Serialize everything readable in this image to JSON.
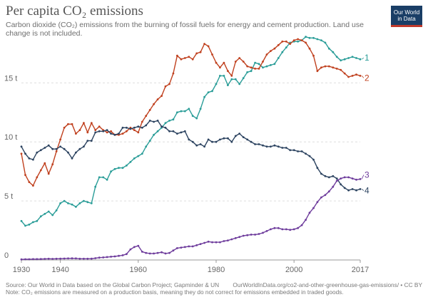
{
  "header": {
    "title": "Per capita CO₂ emissions",
    "subtitle": "Carbon dioxide (CO₂) emissions from the burning of fossil fuels for energy and cement production. Land use change is not included."
  },
  "logo": {
    "line1": "Our World",
    "line2": "in Data",
    "bg_color": "#1a3e66",
    "accent_color": "#c0392b"
  },
  "footer": {
    "source": "Source: Our World in Data based on the Global Carbon Project; Gapminder & UN",
    "url": "OurWorldInData.org/co2-and-other-greenhouse-gas-emissions/ • CC BY",
    "note": "Note: CO₂ emissions are measured on a production basis, meaning they do not correct for emissions embedded in traded goods."
  },
  "chart_data": {
    "type": "line",
    "title": "Per capita CO₂ emissions",
    "xlabel": "",
    "ylabel": "",
    "xlim": [
      1930,
      2017
    ],
    "ylim": [
      0,
      19
    ],
    "x_ticks": [
      1930,
      1940,
      1960,
      1980,
      2000,
      2017
    ],
    "y_ticks": [
      0,
      5,
      10,
      15
    ],
    "y_tick_labels": [
      "0",
      "5 t",
      "10 t",
      "15 t"
    ],
    "grid": "horizontal-dashed",
    "markers": true,
    "series": [
      {
        "name": "1",
        "color": "#2a9d98",
        "x": [
          1930,
          1931,
          1932,
          1933,
          1934,
          1935,
          1936,
          1937,
          1938,
          1939,
          1940,
          1941,
          1942,
          1943,
          1944,
          1945,
          1946,
          1947,
          1948,
          1949,
          1950,
          1951,
          1952,
          1953,
          1954,
          1955,
          1956,
          1957,
          1958,
          1959,
          1960,
          1961,
          1962,
          1963,
          1964,
          1965,
          1966,
          1967,
          1968,
          1969,
          1970,
          1971,
          1972,
          1973,
          1974,
          1975,
          1976,
          1977,
          1978,
          1979,
          1980,
          1981,
          1982,
          1983,
          1984,
          1985,
          1986,
          1987,
          1988,
          1989,
          1990,
          1991,
          1992,
          1993,
          1994,
          1995,
          1996,
          1997,
          1998,
          1999,
          2000,
          2001,
          2002,
          2003,
          2004,
          2005,
          2006,
          2007,
          2008,
          2009,
          2010,
          2011,
          2012,
          2013,
          2014,
          2015,
          2016,
          2017
        ],
        "y": [
          3.3,
          2.9,
          3.0,
          3.2,
          3.3,
          3.7,
          3.9,
          4.1,
          3.8,
          4.2,
          4.8,
          5.0,
          4.8,
          4.7,
          4.5,
          4.8,
          5.0,
          4.9,
          4.8,
          6.2,
          7.0,
          7.0,
          6.8,
          7.5,
          7.7,
          7.8,
          7.8,
          8.0,
          8.3,
          8.6,
          8.8,
          9.0,
          9.6,
          10.1,
          10.6,
          10.9,
          11.2,
          11.6,
          11.8,
          11.9,
          12.5,
          12.6,
          12.6,
          12.8,
          12.2,
          12.0,
          12.8,
          13.8,
          14.2,
          14.3,
          14.9,
          15.6,
          15.6,
          14.8,
          15.3,
          15.3,
          14.9,
          15.4,
          15.9,
          16.0,
          16.7,
          16.6,
          16.3,
          16.4,
          16.5,
          16.6,
          17.1,
          17.6,
          18.0,
          18.4,
          18.5,
          18.5,
          18.6,
          18.9,
          18.8,
          18.8,
          18.7,
          18.6,
          18.4,
          17.9,
          17.6,
          17.2,
          16.9,
          17.0,
          17.1,
          17.2,
          17.1,
          17.0
        ]
      },
      {
        "name": "2",
        "color": "#c0411f",
        "x": [
          1930,
          1931,
          1932,
          1933,
          1934,
          1935,
          1936,
          1937,
          1938,
          1939,
          1940,
          1941,
          1942,
          1943,
          1944,
          1945,
          1946,
          1947,
          1948,
          1949,
          1950,
          1951,
          1952,
          1953,
          1954,
          1955,
          1956,
          1957,
          1958,
          1959,
          1960,
          1961,
          1962,
          1963,
          1964,
          1965,
          1966,
          1967,
          1968,
          1969,
          1970,
          1971,
          1972,
          1973,
          1974,
          1975,
          1976,
          1977,
          1978,
          1979,
          1980,
          1981,
          1982,
          1983,
          1984,
          1985,
          1986,
          1987,
          1988,
          1989,
          1990,
          1991,
          1992,
          1993,
          1994,
          1995,
          1996,
          1997,
          1998,
          1999,
          2000,
          2001,
          2002,
          2003,
          2004,
          2005,
          2006,
          2007,
          2008,
          2009,
          2010,
          2011,
          2012,
          2013,
          2014,
          2015,
          2016,
          2017
        ],
        "y": [
          9.0,
          7.2,
          6.6,
          6.3,
          7.0,
          7.6,
          8.2,
          7.3,
          8.1,
          9.2,
          10.2,
          11.2,
          11.5,
          11.5,
          10.7,
          11.0,
          11.6,
          10.8,
          11.6,
          11.0,
          11.3,
          11.0,
          10.8,
          10.9,
          10.6,
          10.6,
          10.7,
          10.9,
          11.2,
          11.0,
          10.8,
          11.7,
          12.2,
          12.7,
          13.2,
          13.6,
          13.9,
          14.7,
          14.9,
          15.8,
          17.3,
          17.0,
          17.1,
          17.2,
          17.0,
          17.5,
          17.6,
          18.3,
          18.1,
          17.4,
          16.7,
          16.3,
          16.7,
          16.0,
          15.6,
          16.8,
          17.1,
          16.8,
          16.4,
          16.3,
          16.2,
          16.2,
          16.8,
          17.4,
          17.7,
          17.9,
          18.2,
          18.5,
          18.5,
          18.3,
          18.6,
          18.7,
          18.6,
          18.4,
          17.9,
          17.3,
          16.0,
          16.3,
          16.4,
          16.4,
          16.3,
          16.2,
          16.1,
          15.8,
          15.5,
          15.6,
          15.7,
          15.6
        ]
      },
      {
        "name": "4",
        "color": "#2c4360",
        "x": [
          1930,
          1931,
          1932,
          1933,
          1934,
          1935,
          1936,
          1937,
          1938,
          1939,
          1940,
          1941,
          1942,
          1943,
          1944,
          1945,
          1946,
          1947,
          1948,
          1949,
          1950,
          1951,
          1952,
          1953,
          1954,
          1955,
          1956,
          1957,
          1958,
          1959,
          1960,
          1961,
          1962,
          1963,
          1964,
          1965,
          1966,
          1967,
          1968,
          1969,
          1970,
          1971,
          1972,
          1973,
          1974,
          1975,
          1976,
          1977,
          1978,
          1979,
          1980,
          1981,
          1982,
          1983,
          1984,
          1985,
          1986,
          1987,
          1988,
          1989,
          1990,
          1991,
          1992,
          1993,
          1994,
          1995,
          1996,
          1997,
          1998,
          1999,
          2000,
          2001,
          2002,
          2003,
          2004,
          2005,
          2006,
          2007,
          2008,
          2009,
          2010,
          2011,
          2012,
          2013,
          2014,
          2015,
          2016,
          2017
        ],
        "y": [
          9.6,
          9.0,
          8.6,
          8.5,
          9.1,
          9.3,
          9.5,
          9.7,
          9.4,
          9.4,
          9.6,
          9.4,
          9.1,
          8.6,
          9.1,
          9.4,
          9.6,
          10.1,
          10.1,
          10.8,
          10.9,
          10.9,
          11.0,
          10.7,
          10.6,
          10.7,
          11.2,
          11.2,
          11.1,
          11.2,
          11.3,
          11.2,
          11.4,
          11.8,
          11.7,
          11.8,
          11.3,
          11.2,
          10.9,
          10.9,
          10.7,
          10.8,
          10.9,
          10.2,
          10.0,
          9.7,
          9.8,
          9.6,
          10.2,
          10.0,
          10.0,
          10.2,
          10.3,
          10.3,
          10.0,
          10.5,
          10.7,
          10.4,
          10.2,
          10.0,
          9.8,
          9.8,
          9.7,
          9.6,
          9.6,
          9.7,
          9.6,
          9.5,
          9.5,
          9.3,
          9.3,
          9.2,
          9.2,
          9.0,
          8.8,
          8.5,
          7.8,
          7.3,
          7.1,
          7.0,
          7.1,
          6.9,
          6.4,
          6.1,
          5.9,
          6.0,
          5.9,
          6.0
        ]
      },
      {
        "name": "3",
        "color": "#6e3c9c",
        "x": [
          1930,
          1931,
          1932,
          1933,
          1934,
          1935,
          1936,
          1937,
          1938,
          1939,
          1940,
          1941,
          1942,
          1943,
          1944,
          1945,
          1946,
          1947,
          1948,
          1949,
          1950,
          1951,
          1952,
          1953,
          1954,
          1955,
          1956,
          1957,
          1958,
          1959,
          1960,
          1961,
          1962,
          1963,
          1964,
          1965,
          1966,
          1967,
          1968,
          1969,
          1970,
          1971,
          1972,
          1973,
          1974,
          1975,
          1976,
          1977,
          1978,
          1979,
          1980,
          1981,
          1982,
          1983,
          1984,
          1985,
          1986,
          1987,
          1988,
          1989,
          1990,
          1991,
          1992,
          1993,
          1994,
          1995,
          1996,
          1997,
          1998,
          1999,
          2000,
          2001,
          2002,
          2003,
          2004,
          2005,
          2006,
          2007,
          2008,
          2009,
          2010,
          2011,
          2012,
          2013,
          2014,
          2015,
          2016,
          2017
        ],
        "y": [
          0.05,
          0.06,
          0.06,
          0.07,
          0.07,
          0.08,
          0.09,
          0.1,
          0.09,
          0.1,
          0.11,
          0.12,
          0.13,
          0.14,
          0.13,
          0.1,
          0.1,
          0.1,
          0.11,
          0.15,
          0.2,
          0.22,
          0.25,
          0.28,
          0.3,
          0.35,
          0.4,
          0.5,
          0.9,
          1.1,
          1.2,
          0.7,
          0.6,
          0.55,
          0.55,
          0.6,
          0.65,
          0.55,
          0.6,
          0.8,
          1.0,
          1.05,
          1.1,
          1.15,
          1.15,
          1.25,
          1.35,
          1.45,
          1.55,
          1.5,
          1.5,
          1.5,
          1.6,
          1.65,
          1.75,
          1.85,
          1.95,
          2.05,
          2.1,
          2.15,
          2.15,
          2.2,
          2.3,
          2.45,
          2.6,
          2.7,
          2.7,
          2.6,
          2.6,
          2.55,
          2.6,
          2.7,
          2.95,
          3.4,
          4.0,
          4.4,
          4.9,
          5.3,
          5.5,
          5.8,
          6.2,
          6.7,
          6.9,
          7.0,
          7.0,
          6.9,
          6.8,
          6.85
        ]
      }
    ]
  }
}
